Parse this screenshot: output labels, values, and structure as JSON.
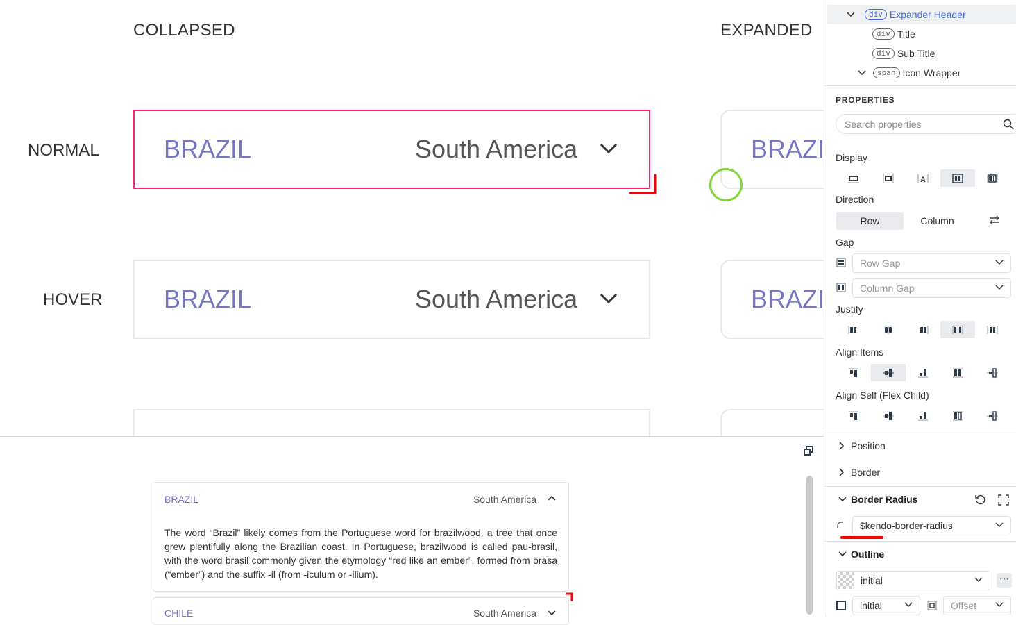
{
  "canvas": {
    "columns": [
      "COLLAPSED",
      "EXPANDED"
    ],
    "rows": [
      "NORMAL",
      "HOVER"
    ],
    "card": {
      "title": "BRAZIL",
      "subtitle": "South America"
    },
    "colors": {
      "selection": "#f0287a",
      "title": "#7676c2",
      "annotation": "#ff0000",
      "cursor": "#7ed63a"
    }
  },
  "preview": {
    "items": [
      {
        "title": "BRAZIL",
        "subtitle": "South America",
        "expanded": true,
        "content": "The word “Brazil” likely comes from the Portuguese word for brazilwood, a tree that once grew plentifully along the Brazilian coast. In Portuguese, brazilwood is called pau-brasil, with the word brasil commonly given the etymology “red like an ember”, formed from brasa (“ember”) and the suffix -il (from -iculum or -ilium)."
      },
      {
        "title": "CHILE",
        "subtitle": "South America",
        "expanded": false
      }
    ]
  },
  "panel": {
    "tree": [
      {
        "tag": "div",
        "label": "Expander Header",
        "selected": true
      },
      {
        "tag": "div",
        "label": "Title"
      },
      {
        "tag": "div",
        "label": "Sub Title"
      },
      {
        "tag": "span",
        "label": "Icon Wrapper"
      }
    ],
    "properties_title": "PROPERTIES",
    "search_placeholder": "Search properties",
    "display_label": "Display",
    "direction_label": "Direction",
    "direction": {
      "row": "Row",
      "column": "Column",
      "selected": "Row"
    },
    "gap_label": "Gap",
    "row_gap_placeholder": "Row Gap",
    "column_gap_placeholder": "Column Gap",
    "justify_label": "Justify",
    "align_items_label": "Align Items",
    "align_self_label": "Align Self (Flex Child)",
    "position_label": "Position",
    "border_label": "Border",
    "border_radius_label": "Border Radius",
    "border_radius_value": "$kendo-border-radius",
    "outline_label": "Outline",
    "outline_color_value": "initial",
    "outline_style_value": "initial",
    "offset_placeholder": "Offset"
  }
}
